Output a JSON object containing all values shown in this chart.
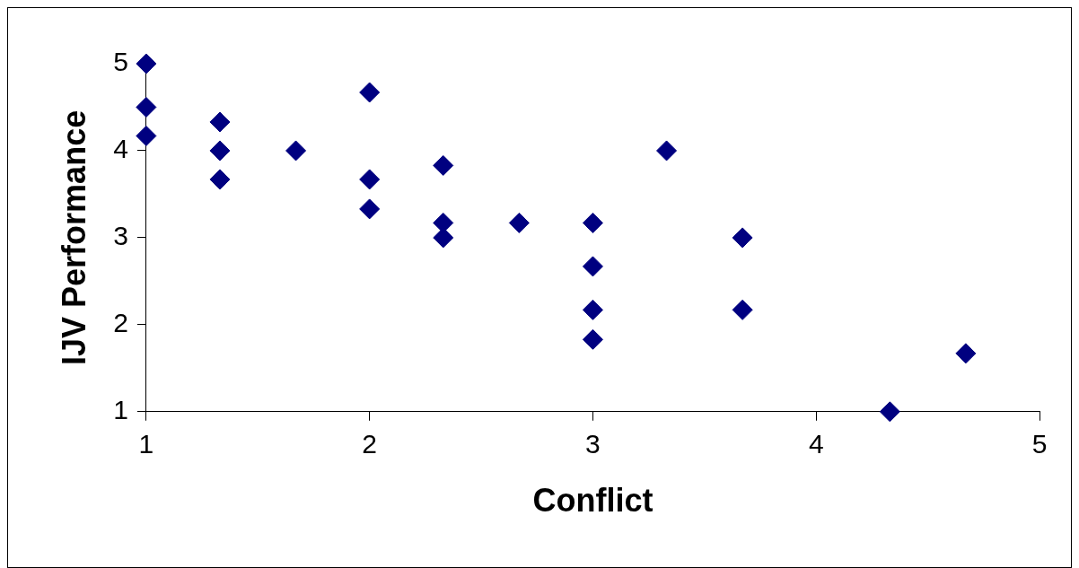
{
  "chart_data": {
    "type": "scatter",
    "xlabel": "Conflict",
    "ylabel": "IJV Performance",
    "x": [
      1,
      1,
      1,
      1.33,
      1.33,
      1.33,
      1.67,
      2,
      2,
      2,
      2.33,
      2.33,
      2.33,
      2.67,
      3,
      3,
      3,
      3,
      3.33,
      3.67,
      3.67,
      4.33,
      4.67
    ],
    "series": [
      {
        "color": "#000080",
        "values": [
          5,
          4.5,
          4.17,
          4.33,
          4,
          3.67,
          4,
          4.67,
          3.67,
          3.33,
          3.83,
          3.17,
          3,
          3.17,
          3.17,
          2.67,
          2.17,
          1.83,
          4,
          3,
          2.17,
          1,
          1.67
        ]
      }
    ],
    "xlim": [
      1,
      5
    ],
    "xticks": [
      1,
      2,
      3,
      4,
      5
    ],
    "ylim": [
      1,
      5
    ],
    "yticks": [
      1,
      2,
      3,
      4,
      5
    ],
    "grid": false,
    "legend": false,
    "marker": "diamond"
  }
}
